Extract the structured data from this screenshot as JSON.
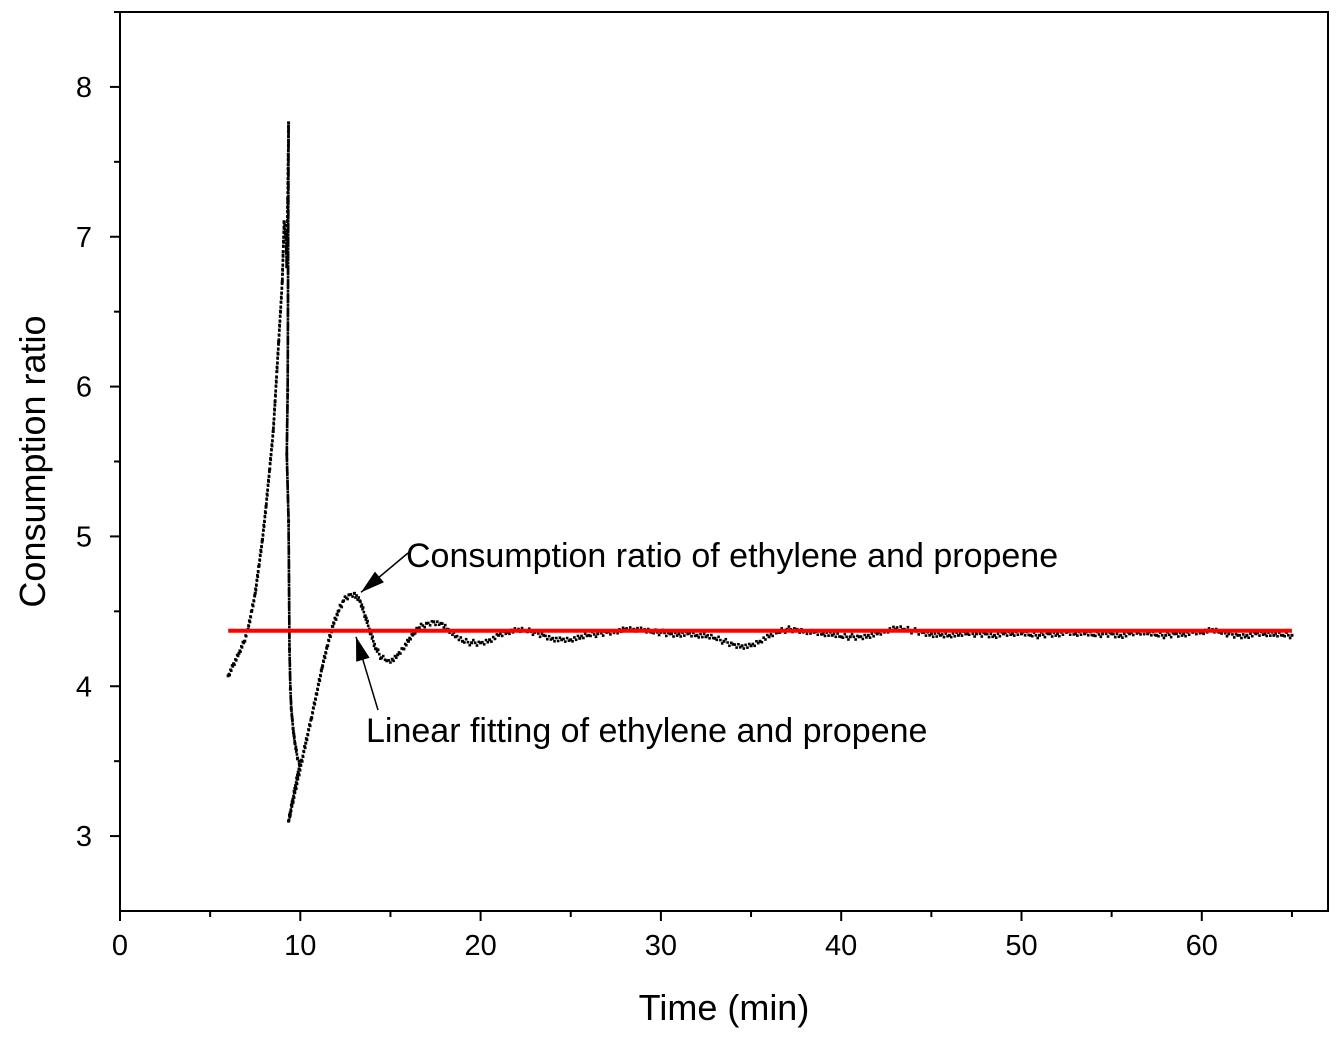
{
  "chart_data": {
    "type": "scatter",
    "title": "",
    "xlabel": "Time (min)",
    "ylabel": "Consumption ratio",
    "xlim": [
      0,
      67
    ],
    "ylim": [
      2.5,
      8.5
    ],
    "x_ticks": [
      "0",
      "10",
      "20",
      "30",
      "40",
      "50",
      "60"
    ],
    "y_ticks": [
      "3",
      "4",
      "5",
      "6",
      "7",
      "8"
    ],
    "grid": false,
    "annotations": [
      {
        "text": "Consumption ratio of ethylene and propene",
        "points_to": [
          13.2,
          4.6
        ]
      },
      {
        "text": "Linear fitting of ethylene and propene",
        "points_to": [
          13.2,
          4.37
        ]
      }
    ],
    "series": [
      {
        "kind": "scatter",
        "color": "#000000",
        "points": [
          [
            6.0,
            4.07
          ],
          [
            6.3,
            4.15
          ],
          [
            6.6,
            4.22
          ],
          [
            6.9,
            4.3
          ],
          [
            7.1,
            4.38
          ],
          [
            7.3,
            4.5
          ],
          [
            7.5,
            4.62
          ],
          [
            7.7,
            4.8
          ],
          [
            7.9,
            4.98
          ],
          [
            8.1,
            5.2
          ],
          [
            8.3,
            5.45
          ],
          [
            8.5,
            5.7
          ],
          [
            8.6,
            5.9
          ],
          [
            8.7,
            6.1
          ],
          [
            8.8,
            6.3
          ],
          [
            8.9,
            6.5
          ],
          [
            9.0,
            6.7
          ],
          [
            9.05,
            6.9
          ],
          [
            9.1,
            7.1
          ],
          [
            9.2,
            7.0
          ],
          [
            9.25,
            6.8
          ],
          [
            9.3,
            7.25
          ],
          [
            9.35,
            7.76
          ],
          [
            9.3,
            5.98
          ],
          [
            9.25,
            5.55
          ],
          [
            9.35,
            5.1
          ],
          [
            9.4,
            4.25
          ],
          [
            9.45,
            3.98
          ],
          [
            9.5,
            3.85
          ],
          [
            9.6,
            3.72
          ],
          [
            9.7,
            3.62
          ],
          [
            9.85,
            3.52
          ],
          [
            10.0,
            3.5
          ],
          [
            9.35,
            3.1
          ],
          [
            10.3,
            3.62
          ],
          [
            10.6,
            3.78
          ],
          [
            10.9,
            3.95
          ],
          [
            11.2,
            4.12
          ],
          [
            11.5,
            4.27
          ],
          [
            11.8,
            4.4
          ],
          [
            12.1,
            4.5
          ],
          [
            12.4,
            4.57
          ],
          [
            12.7,
            4.61
          ],
          [
            13.0,
            4.62
          ],
          [
            13.3,
            4.57
          ],
          [
            13.6,
            4.47
          ],
          [
            13.9,
            4.35
          ],
          [
            14.2,
            4.25
          ],
          [
            14.5,
            4.19
          ],
          [
            14.8,
            4.17
          ],
          [
            15.1,
            4.18
          ],
          [
            15.4,
            4.21
          ],
          [
            15.7,
            4.25
          ],
          [
            16.0,
            4.3
          ],
          [
            16.3,
            4.35
          ],
          [
            16.6,
            4.39
          ],
          [
            17.0,
            4.42
          ],
          [
            17.4,
            4.43
          ],
          [
            17.8,
            4.42
          ],
          [
            18.2,
            4.38
          ],
          [
            18.6,
            4.33
          ],
          [
            19.0,
            4.3
          ],
          [
            19.5,
            4.29
          ],
          [
            20.0,
            4.29
          ],
          [
            20.5,
            4.31
          ],
          [
            21.0,
            4.34
          ],
          [
            21.5,
            4.36
          ],
          [
            22.0,
            4.37
          ],
          [
            22.5,
            4.37
          ],
          [
            23.0,
            4.36
          ],
          [
            23.5,
            4.34
          ],
          [
            24.0,
            4.32
          ],
          [
            24.5,
            4.31
          ],
          [
            25.0,
            4.31
          ],
          [
            25.5,
            4.32
          ],
          [
            26.0,
            4.34
          ],
          [
            26.5,
            4.35
          ],
          [
            27.0,
            4.36
          ],
          [
            27.5,
            4.37
          ],
          [
            28.0,
            4.38
          ],
          [
            28.5,
            4.38
          ],
          [
            29.0,
            4.37
          ],
          [
            29.5,
            4.36
          ],
          [
            30.0,
            4.36
          ],
          [
            30.5,
            4.35
          ],
          [
            31.0,
            4.35
          ],
          [
            31.5,
            4.35
          ],
          [
            32.0,
            4.34
          ],
          [
            32.5,
            4.33
          ],
          [
            33.0,
            4.32
          ],
          [
            33.5,
            4.3
          ],
          [
            34.0,
            4.28
          ],
          [
            34.5,
            4.27
          ],
          [
            35.0,
            4.27
          ],
          [
            35.5,
            4.3
          ],
          [
            36.0,
            4.33
          ],
          [
            36.5,
            4.36
          ],
          [
            37.0,
            4.38
          ],
          [
            37.5,
            4.38
          ],
          [
            38.0,
            4.37
          ],
          [
            38.5,
            4.36
          ],
          [
            39.0,
            4.35
          ],
          [
            39.5,
            4.34
          ],
          [
            40.0,
            4.33
          ],
          [
            40.5,
            4.33
          ],
          [
            41.0,
            4.33
          ],
          [
            41.5,
            4.34
          ],
          [
            42.0,
            4.35
          ],
          [
            42.5,
            4.37
          ],
          [
            43.0,
            4.38
          ],
          [
            43.5,
            4.38
          ],
          [
            44.0,
            4.37
          ],
          [
            44.5,
            4.36
          ],
          [
            45.0,
            4.35
          ],
          [
            45.5,
            4.34
          ],
          [
            46.0,
            4.34
          ],
          [
            46.5,
            4.34
          ],
          [
            47.0,
            4.35
          ],
          [
            47.5,
            4.35
          ],
          [
            48.0,
            4.35
          ],
          [
            48.5,
            4.34
          ],
          [
            49.0,
            4.35
          ],
          [
            49.5,
            4.35
          ],
          [
            50.0,
            4.35
          ],
          [
            50.5,
            4.34
          ],
          [
            51.0,
            4.34
          ],
          [
            51.5,
            4.35
          ],
          [
            52.0,
            4.35
          ],
          [
            52.5,
            4.36
          ],
          [
            53.0,
            4.35
          ],
          [
            53.5,
            4.35
          ],
          [
            54.0,
            4.34
          ],
          [
            54.5,
            4.35
          ],
          [
            55.0,
            4.35
          ],
          [
            55.5,
            4.34
          ],
          [
            56.0,
            4.35
          ],
          [
            56.5,
            4.36
          ],
          [
            57.0,
            4.35
          ],
          [
            57.5,
            4.34
          ],
          [
            58.0,
            4.34
          ],
          [
            58.5,
            4.35
          ],
          [
            59.0,
            4.35
          ],
          [
            59.5,
            4.36
          ],
          [
            60.0,
            4.36
          ],
          [
            60.5,
            4.37
          ],
          [
            61.0,
            4.36
          ],
          [
            61.5,
            4.35
          ],
          [
            62.0,
            4.34
          ],
          [
            62.5,
            4.34
          ],
          [
            63.0,
            4.35
          ],
          [
            63.5,
            4.35
          ],
          [
            64.0,
            4.34
          ],
          [
            64.5,
            4.34
          ],
          [
            65.0,
            4.34
          ]
        ]
      },
      {
        "kind": "line",
        "color": "#ff0000",
        "x": [
          6.0,
          65.0
        ],
        "y": [
          4.37,
          4.37
        ]
      }
    ]
  }
}
